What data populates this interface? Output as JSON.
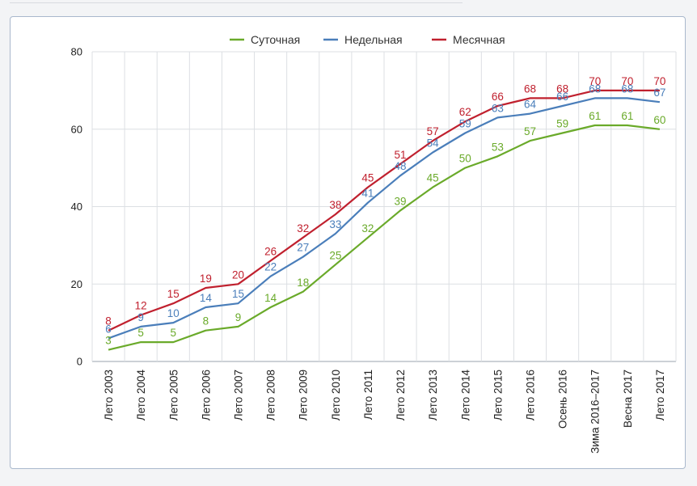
{
  "chart_data": {
    "type": "line",
    "categories": [
      "Лето 2003",
      "Лето 2004",
      "Лето 2005",
      "Лето 2006",
      "Лето 2007",
      "Лето 2008",
      "Лето 2009",
      "Лето 2010",
      "Лето 2011",
      "Лето 2012",
      "Лето 2013",
      "Лето 2014",
      "Лето 2015",
      "Лето 2016",
      "Осень 2016",
      "Зима 2016–2017",
      "Весна 2017",
      "Лето 2017"
    ],
    "series": [
      {
        "name": "Суточная",
        "color": "#6aaa2a",
        "values": [
          3,
          5,
          5,
          8,
          9,
          14,
          18,
          25,
          32,
          39,
          45,
          50,
          53,
          57,
          59,
          61,
          61,
          60
        ]
      },
      {
        "name": "Недельная",
        "color": "#4a7eba",
        "values": [
          6,
          9,
          10,
          14,
          15,
          22,
          27,
          33,
          41,
          48,
          54,
          59,
          63,
          64,
          66,
          68,
          68,
          67
        ]
      },
      {
        "name": "Месячная",
        "color": "#c0202e",
        "values": [
          8,
          12,
          15,
          19,
          20,
          26,
          32,
          38,
          45,
          51,
          57,
          62,
          66,
          68,
          68,
          70,
          70,
          70
        ]
      }
    ],
    "ylim": [
      0,
      80
    ],
    "yticks": [
      0,
      20,
      40,
      60,
      80
    ],
    "grid": true,
    "legend_position": "top-center"
  }
}
